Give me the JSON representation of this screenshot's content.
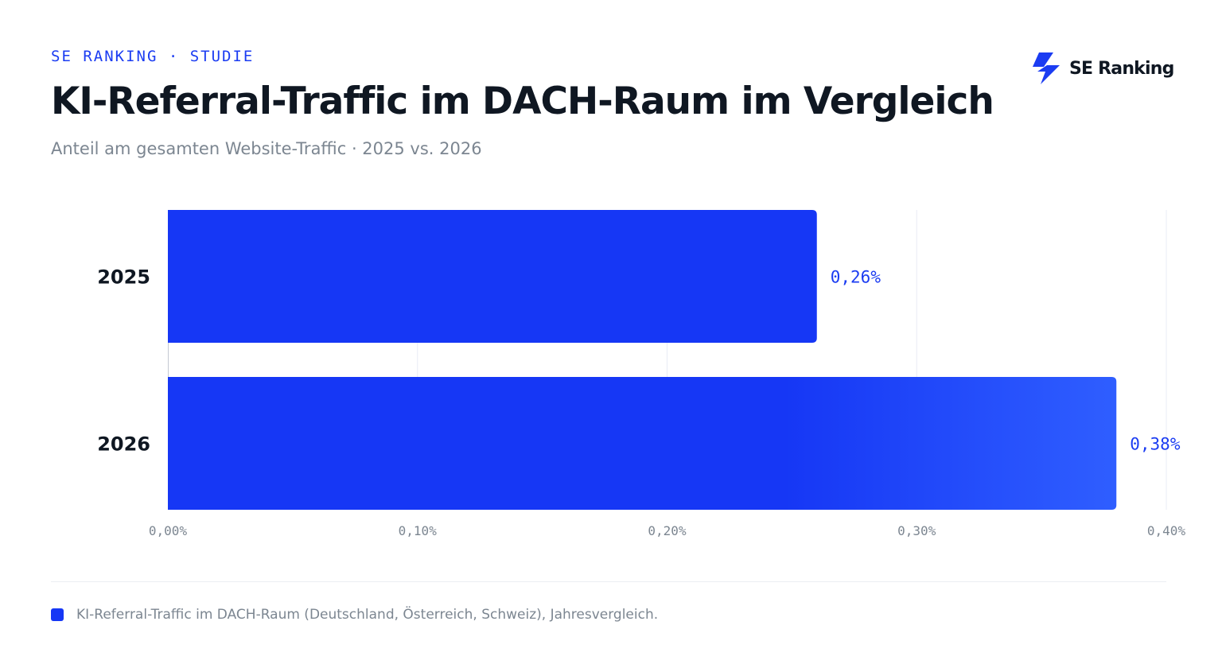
{
  "header": {
    "eyebrow": "SE RANKING · STUDIE",
    "logo_text": "SE Ranking",
    "logo_icon": "lightning-icon"
  },
  "colors": {
    "accent": "#1b3cf2",
    "bar": "#1637f5",
    "bar_highlight": "#2f5eff",
    "text_dark": "#0f1722",
    "text_muted": "#7c8691",
    "grid": "#e9ecf5"
  },
  "chart_data": {
    "type": "bar",
    "orientation": "horizontal",
    "title": "KI-Referral-Traffic im DACH-Raum im Vergleich",
    "subtitle": "Anteil am gesamten Website-Traffic · 2025 vs. 2026",
    "categories": [
      "2025",
      "2026"
    ],
    "values": [
      0.26,
      0.38
    ],
    "value_labels": [
      "0,26%",
      "0,38%"
    ],
    "xlim": [
      0,
      0.4
    ],
    "x_ticks": [
      0,
      0.1,
      0.2,
      0.3,
      0.4
    ],
    "x_tick_labels": [
      "0,00%",
      "0,10%",
      "0,20%",
      "0,30%",
      "0,40%"
    ],
    "grid": "vertical",
    "legend": {
      "position": "bottom-left",
      "entries": [
        "KI-Referral-Traffic im DACH-Raum (Deutschland, Österreich, Schweiz), Jahresvergleich."
      ]
    }
  }
}
